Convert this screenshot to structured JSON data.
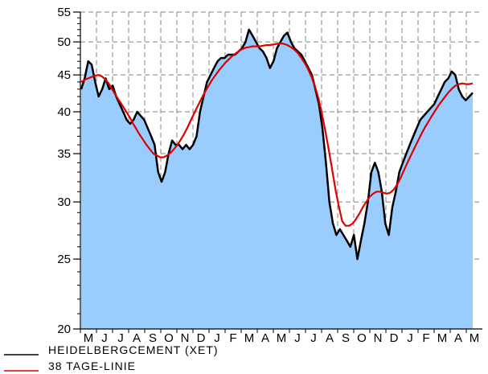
{
  "chart_data": {
    "type": "area",
    "title": "",
    "xlabel": "",
    "ylabel": "",
    "y_scale": "log",
    "ylim": [
      20,
      55
    ],
    "y_ticks": [
      20,
      25,
      30,
      35,
      40,
      45,
      50,
      55
    ],
    "x_tick_labels": [
      "M",
      "J",
      "J",
      "A",
      "S",
      "O",
      "N",
      "D",
      "J",
      "F",
      "M",
      "A",
      "M",
      "J",
      "J",
      "A",
      "S",
      "O",
      "N",
      "D",
      "J",
      "F",
      "M",
      "A",
      "M"
    ],
    "grid": true,
    "legend_position": "bottom-left",
    "colors": {
      "area_fill": "#99ccff",
      "price_line": "#000000",
      "avg_line": "#e00000",
      "grid": "#808080"
    },
    "series": [
      {
        "name": "HEIDELBERGCEMENT (XET)",
        "color": "#000000",
        "values": [
          43,
          44.5,
          47,
          46.5,
          44,
          42,
          43,
          44.5,
          43,
          43.5,
          42,
          41,
          40,
          39,
          38.5,
          39,
          40,
          39.5,
          39,
          38,
          37,
          36,
          33,
          32,
          33,
          35,
          36.5,
          36,
          36,
          35.5,
          36,
          35.5,
          36,
          37,
          40,
          42,
          44,
          45,
          46,
          47,
          47.5,
          47.5,
          48,
          48,
          48,
          48.5,
          49,
          50,
          52,
          51,
          50,
          49,
          48.5,
          47.5,
          46,
          47,
          49,
          50,
          51,
          51.5,
          50,
          49,
          48.5,
          48,
          47,
          46,
          45,
          43,
          41,
          38,
          34,
          30,
          28,
          27,
          27.5,
          27,
          26.5,
          26,
          27,
          25,
          26.5,
          28,
          30,
          33,
          34,
          33,
          31,
          28,
          27,
          29.5,
          31,
          33,
          34,
          35,
          36,
          37,
          38,
          39,
          39.5,
          40,
          40.5,
          41,
          42,
          43,
          44,
          44.5,
          45.5,
          45,
          43,
          42,
          41.5,
          42,
          42.5
        ]
      },
      {
        "name": "38 TAGE-LINIE",
        "color": "#e00000",
        "values": [
          44,
          44.3,
          44.5,
          44.7,
          44.9,
          45,
          44.8,
          44.4,
          43.8,
          43,
          42.2,
          41.5,
          40.8,
          40.1,
          39.4,
          38.6,
          37.9,
          37.2,
          36.6,
          36,
          35.5,
          35,
          34.8,
          34.6,
          34.6,
          34.8,
          35.1,
          35.5,
          36,
          36.6,
          37.3,
          38.1,
          39,
          39.9,
          40.8,
          41.7,
          42.6,
          43.4,
          44.2,
          44.9,
          45.6,
          46.2,
          46.8,
          47.3,
          47.8,
          48.2,
          48.6,
          48.9,
          49.1,
          49.2,
          49.3,
          49.3,
          49.3,
          49.4,
          49.5,
          49.5,
          49.6,
          49.7,
          49.8,
          49.7,
          49.5,
          49.2,
          48.8,
          48.3,
          47.6,
          46.8,
          45.9,
          44.8,
          43.5,
          41.9,
          40,
          37.8,
          35.6,
          33.4,
          31.3,
          29.6,
          28.2,
          27.8,
          27.8,
          28,
          28.4,
          28.9,
          29.5,
          30,
          30.5,
          30.8,
          31,
          31,
          30.9,
          30.8,
          30.9,
          31.2,
          31.7,
          32.4,
          33.2,
          34,
          34.8,
          35.6,
          36.4,
          37.2,
          38,
          38.7,
          39.4,
          40.1,
          40.8,
          41.4,
          42,
          42.6,
          43.1,
          43.5,
          43.7,
          43.8,
          43.7,
          43.7,
          43.8
        ]
      }
    ]
  },
  "legend": [
    {
      "label": "HEIDELBERGCEMENT (XET)",
      "color": "#000000"
    },
    {
      "label": "38 TAGE-LINIE",
      "color": "#e00000"
    }
  ]
}
